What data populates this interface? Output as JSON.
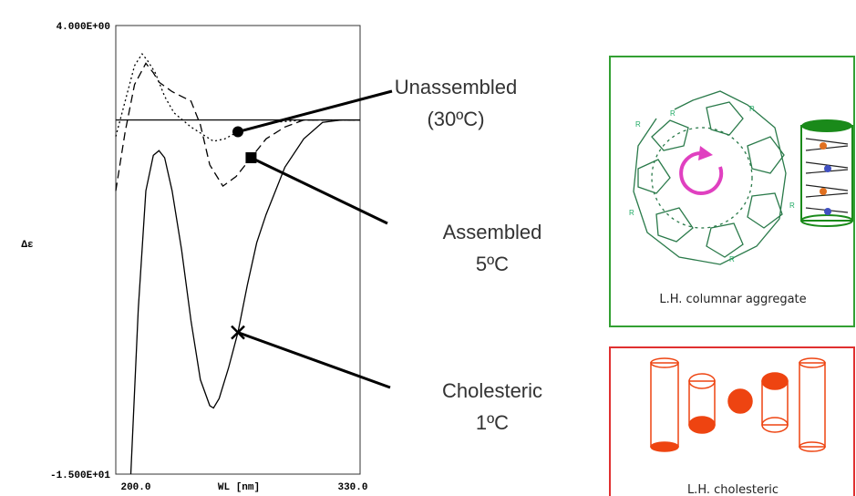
{
  "chart_data": {
    "type": "line",
    "xlabel": "WL [nm]",
    "ylabel": "Δε",
    "xlim": [
      200,
      330
    ],
    "ylim": [
      -15,
      4
    ],
    "xticks": [
      {
        "value": 200,
        "label": "200.0"
      },
      {
        "value": 330,
        "label": "330.0"
      }
    ],
    "yticks": [
      {
        "value": -15,
        "label": "-1.500E+01"
      },
      {
        "value": 4,
        "label": "4.000E+00"
      }
    ],
    "hline": 0,
    "series": [
      {
        "name": "Unassembled",
        "condition": "(30ºC)",
        "color": "#000000",
        "line_style": "dotted",
        "marker": "circle",
        "x": [
          200,
          205,
          210,
          214,
          217,
          221,
          226,
          231,
          240,
          246,
          252,
          258,
          265,
          275,
          284,
          300,
          315,
          330
        ],
        "values": [
          -0.7,
          0.8,
          2.3,
          2.8,
          2.5,
          2.0,
          1.0,
          0.3,
          -0.3,
          -0.6,
          -0.9,
          -0.8,
          -0.5,
          -0.3,
          -0.1,
          0,
          0,
          0
        ]
      },
      {
        "name": "Assembled",
        "condition": "5ºC",
        "color": "#000000",
        "line_style": "dashed",
        "marker": "square",
        "x": [
          200,
          205,
          210,
          216,
          220,
          223,
          230,
          240,
          245,
          250,
          257,
          264,
          272,
          280,
          290,
          300,
          315,
          330
        ],
        "values": [
          -3,
          -0.5,
          1.5,
          2.4,
          2.0,
          1.6,
          1.2,
          0.8,
          -0.2,
          -1.9,
          -2.8,
          -2.4,
          -1.6,
          -0.8,
          -0.3,
          0,
          0,
          0
        ]
      },
      {
        "name": "Cholesteric",
        "condition": "1ºC",
        "color": "#000000",
        "line_style": "solid",
        "marker": "cross",
        "x": [
          208,
          212,
          216,
          220,
          223,
          226,
          230,
          235,
          240,
          245,
          250,
          252,
          255,
          260,
          265,
          270,
          275,
          280,
          290,
          300,
          310,
          320,
          330
        ],
        "values": [
          -15,
          -8,
          -3,
          -1.5,
          -1.3,
          -1.6,
          -3,
          -5.5,
          -8.5,
          -11,
          -12.1,
          -12.2,
          -11.8,
          -10.5,
          -9,
          -7,
          -5.2,
          -4,
          -2,
          -0.8,
          -0.1,
          0,
          0
        ]
      }
    ]
  },
  "diagrams": {
    "columnar": {
      "caption": "L.H. columnar aggregate",
      "substituent": "R"
    },
    "cholesteric": {
      "caption": "L.H. cholesteric"
    }
  }
}
